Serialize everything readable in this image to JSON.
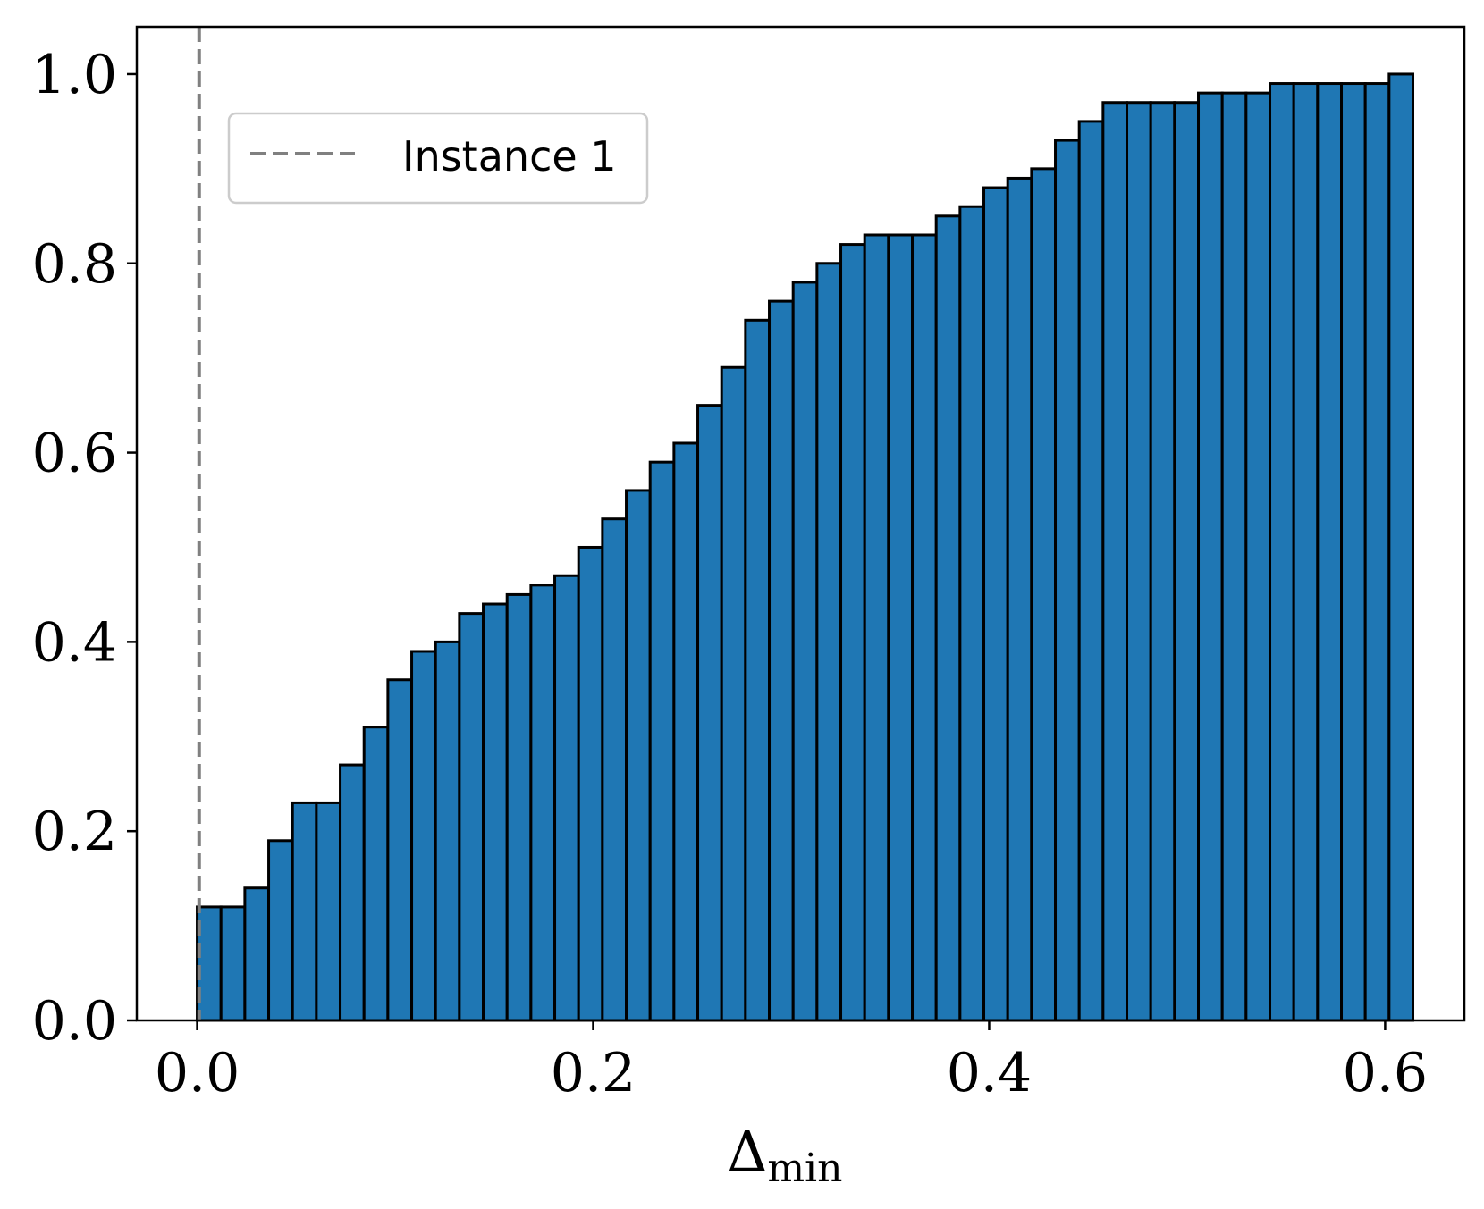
{
  "chart_data": {
    "type": "bar",
    "subtype": "cumulative-histogram",
    "title": "",
    "xlabel": "Δ",
    "xlabel_subscript": "min",
    "ylabel": "",
    "xlim": [
      -0.0305,
      0.64
    ],
    "ylim": [
      0,
      1.05
    ],
    "xticks": [
      0.0,
      0.2,
      0.4,
      0.6
    ],
    "xtick_labels": [
      "0.0",
      "0.2",
      "0.4",
      "0.6"
    ],
    "yticks": [
      0.0,
      0.2,
      0.4,
      0.6,
      0.8,
      1.0
    ],
    "ytick_labels": [
      "0.0",
      "0.2",
      "0.4",
      "0.6",
      "0.8",
      "1.0"
    ],
    "grid": false,
    "bar_color": "#1f77b4",
    "edge_color": "#000000",
    "bins": {
      "start": 0.0,
      "width": 0.01204,
      "values": [
        0.12,
        0.12,
        0.14,
        0.19,
        0.23,
        0.23,
        0.27,
        0.31,
        0.36,
        0.39,
        0.4,
        0.43,
        0.44,
        0.45,
        0.46,
        0.47,
        0.5,
        0.53,
        0.56,
        0.59,
        0.61,
        0.65,
        0.69,
        0.74,
        0.76,
        0.78,
        0.8,
        0.82,
        0.83,
        0.83,
        0.83,
        0.85,
        0.86,
        0.88,
        0.89,
        0.9,
        0.93,
        0.95,
        0.97,
        0.97,
        0.97,
        0.97,
        0.98,
        0.98,
        0.98,
        0.99,
        0.99,
        0.99,
        0.99,
        0.99,
        1.0
      ]
    },
    "reference_lines": [
      {
        "name": "Instance 1",
        "x": 0.001,
        "style": "dashed",
        "color": "#808080"
      }
    ],
    "legend": {
      "position": "upper-left",
      "entries": [
        "Instance 1"
      ]
    }
  }
}
